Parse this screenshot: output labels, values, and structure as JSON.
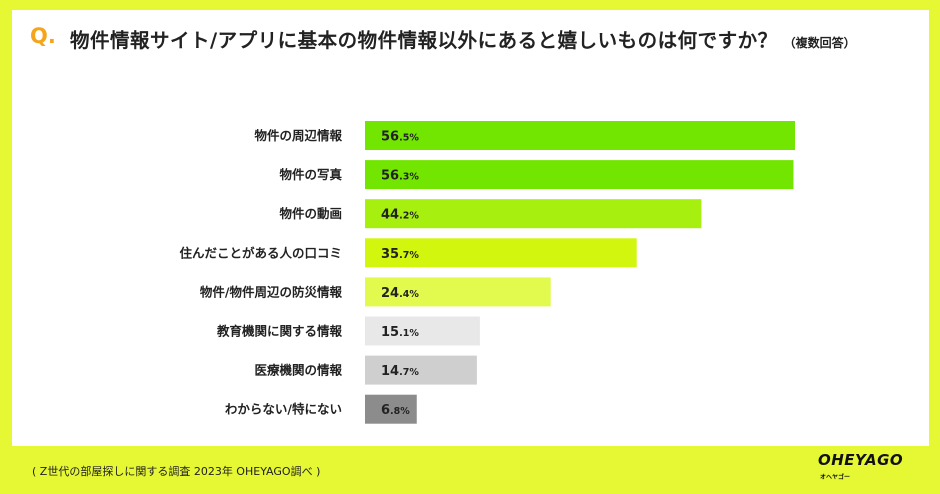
{
  "question": {
    "mark": "Q.",
    "text": "物件情報サイト/アプリに基本の物件情報以外にあると嬉しいものは何ですか？",
    "note": "（複数回答）"
  },
  "chart_data": {
    "type": "bar",
    "orientation": "horizontal",
    "unit": "%",
    "categories": [
      "物件の周辺情報",
      "物件の写真",
      "物件の動画",
      "住んだことがある人の口コミ",
      "物件/物件周辺の防災情報",
      "教育機関に関する情報",
      "医療機関の情報",
      "わからない/特にない"
    ],
    "values": [
      56.5,
      56.3,
      44.2,
      35.7,
      24.4,
      15.1,
      14.7,
      6.8
    ],
    "value_labels": [
      {
        "int": "56",
        "dec": ".5%"
      },
      {
        "int": "56",
        "dec": ".3%"
      },
      {
        "int": "44",
        "dec": ".2%"
      },
      {
        "int": "35",
        "dec": ".7%"
      },
      {
        "int": "24",
        "dec": ".4%"
      },
      {
        "int": "15",
        "dec": ".1%"
      },
      {
        "int": "14",
        "dec": ".7%"
      },
      {
        "int": "6",
        "dec": ".8%"
      }
    ],
    "bar_colors": [
      "#72e500",
      "#72e500",
      "#a6ef0f",
      "#d2f60e",
      "#e2fa4d",
      "#e8e8e8",
      "#cfcfcf",
      "#8c8c8c"
    ]
  },
  "footer": {
    "source": "( Z世代の部屋探しに関する調査 2023年 OHEYAGO調べ )"
  },
  "logo": {
    "name": "OHEYAGO",
    "sub": "オヘヤゴー"
  }
}
